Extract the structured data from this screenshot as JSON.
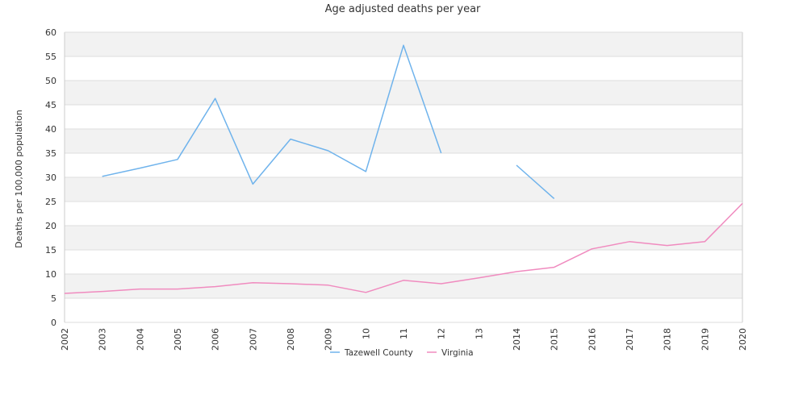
{
  "chart_data": {
    "type": "line",
    "title": "Age adjusted deaths per year",
    "xlabel": "",
    "ylabel": "Deaths per 100,000 population",
    "x": [
      "2002",
      "2003",
      "2004",
      "2005",
      "2006",
      "2007",
      "2008",
      "2009",
      "2010",
      "2011",
      "2012",
      "2013",
      "2014",
      "2015",
      "2016",
      "2017",
      "2018",
      "2019",
      "2020"
    ],
    "x_tick_labels": [
      "2002",
      "2003",
      "2004",
      "2005",
      "2006",
      "2007",
      "2008",
      "2009",
      "10",
      "11",
      "12",
      "13",
      "2014",
      "2015",
      "2016",
      "2017",
      "2018",
      "2019",
      "2020"
    ],
    "ylim": [
      0,
      60
    ],
    "y_ticks": [
      0,
      5,
      10,
      15,
      20,
      25,
      30,
      35,
      40,
      45,
      50,
      55,
      60
    ],
    "grid": "alternating horizontal bands",
    "legend_position": "bottom-center",
    "series": [
      {
        "name": "Tazewell County",
        "color": "#6fb3ec",
        "values": [
          null,
          30.2,
          31.9,
          33.7,
          46.3,
          28.6,
          37.9,
          35.5,
          31.2,
          57.3,
          35.0,
          null,
          32.5,
          25.6,
          null,
          null,
          null,
          null,
          null
        ]
      },
      {
        "name": "Virginia",
        "color": "#f08bbf",
        "values": [
          6.0,
          6.4,
          6.9,
          6.9,
          7.4,
          8.2,
          8.0,
          7.7,
          6.2,
          8.7,
          8.0,
          9.2,
          10.5,
          11.4,
          15.2,
          16.7,
          15.9,
          16.7,
          24.6
        ]
      }
    ],
    "colors": {
      "band": "#f2f2f2",
      "grid": "#dddddd",
      "axis": "#cccccc",
      "text": "#333333"
    }
  }
}
